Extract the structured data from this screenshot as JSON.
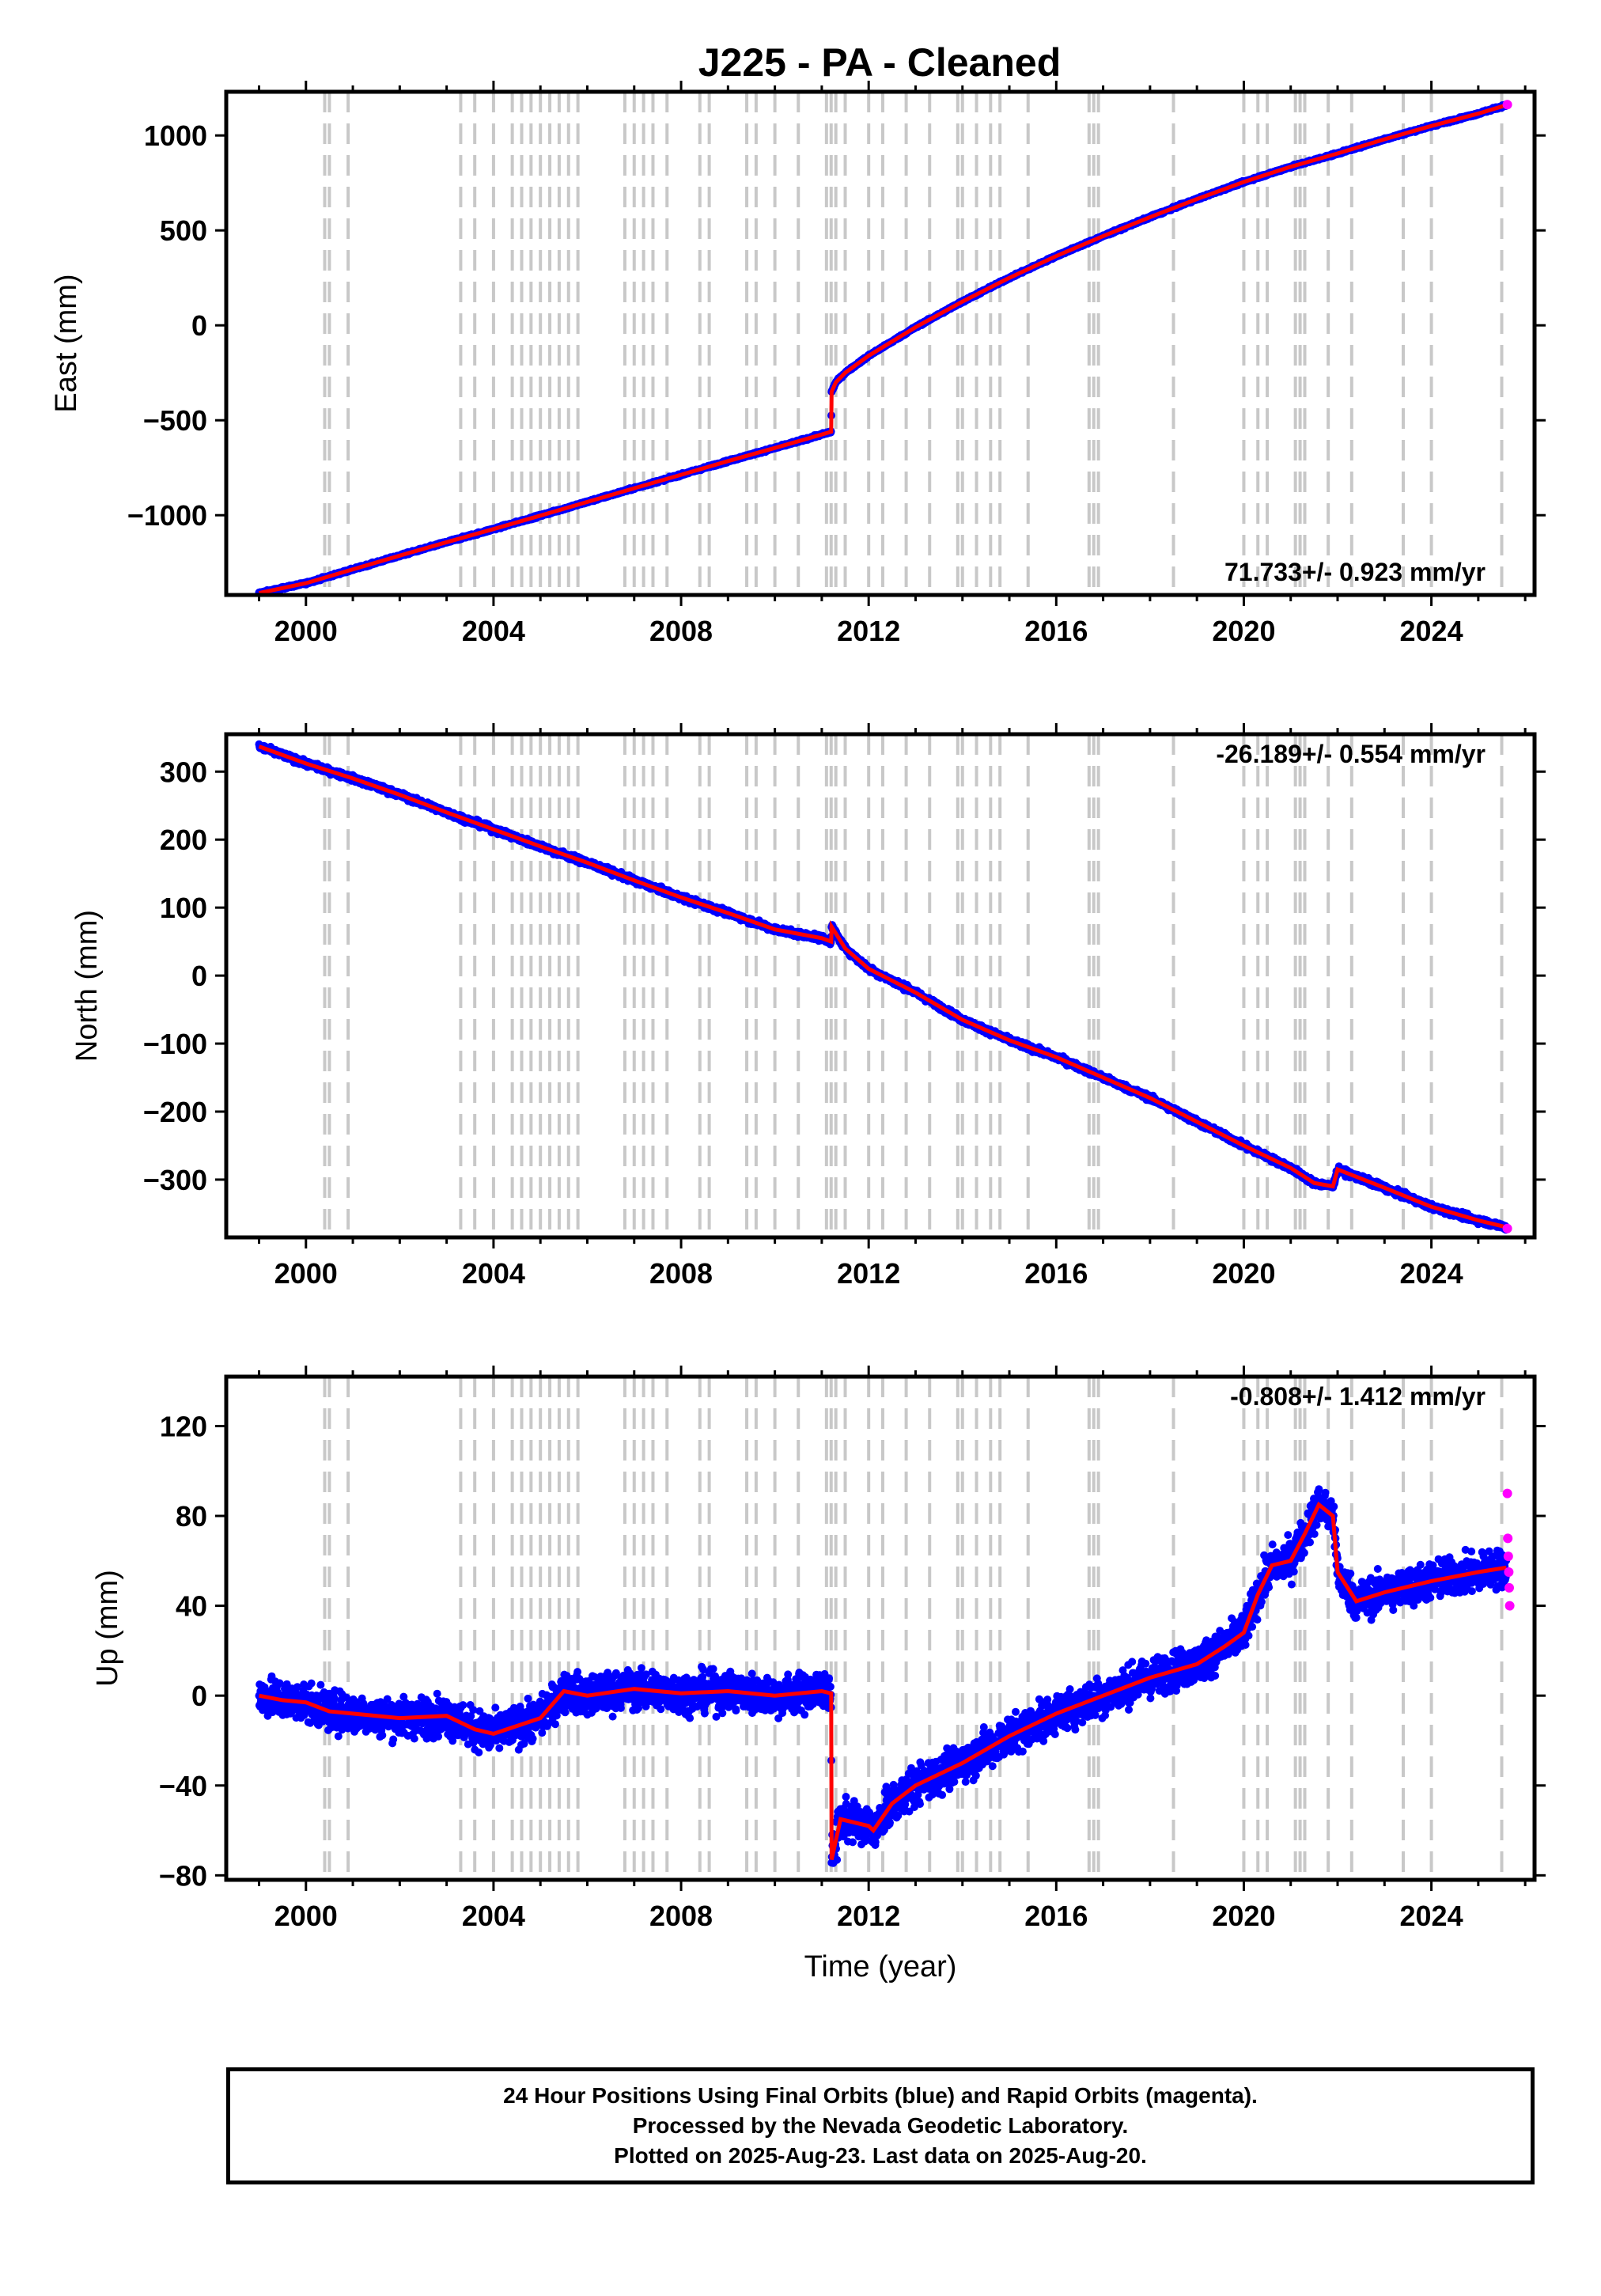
{
  "chart_data": {
    "title": "J225  - PA - Cleaned",
    "type": "scatter",
    "xlabel": "Time (year)",
    "x_range": [
      1998.3,
      2026.2
    ],
    "x_ticks": [
      2000,
      2004,
      2008,
      2012,
      2016,
      2020,
      2024
    ],
    "x_tick_labels": [
      "2000",
      "2004",
      "2008",
      "2012",
      "2016",
      "2020",
      "2024"
    ],
    "colors": {
      "final_orbits": "#0000ff",
      "rapid_orbits": "#ff00ff",
      "model": "#ff0000",
      "offset_lines": "#c8c8c8"
    },
    "offset_epochs": [
      2000.4,
      2000.5,
      2000.9,
      2003.3,
      2003.6,
      2004.0,
      2004.4,
      2004.6,
      2004.8,
      2005.0,
      2005.2,
      2005.4,
      2005.6,
      2005.8,
      2006.8,
      2007.0,
      2007.2,
      2007.4,
      2007.7,
      2008.4,
      2008.6,
      2009.4,
      2009.6,
      2010.0,
      2010.5,
      2011.1,
      2011.2,
      2011.3,
      2011.5,
      2012.0,
      2012.3,
      2012.8,
      2013.3,
      2013.9,
      2014.0,
      2014.3,
      2014.6,
      2014.8,
      2015.4,
      2016.7,
      2016.8,
      2016.9,
      2018.5,
      2020.0,
      2020.3,
      2020.5,
      2021.1,
      2021.2,
      2021.3,
      2021.8,
      2022.3,
      2023.4,
      2024.0,
      2025.5
    ],
    "panels": [
      {
        "ylabel": "East (mm)",
        "ylim": [
          -1420,
          1230
        ],
        "y_ticks": [
          1000,
          500,
          0,
          -500,
          -1000
        ],
        "y_tick_labels": [
          "1000",
          "500",
          "0",
          "−500",
          "−1000"
        ],
        "rate": "71.733+/- 0.923 mm/yr",
        "rate_position": "bottom-right",
        "series": [
          {
            "name": "Final orbits",
            "points": [
              [
                1999.0,
                -1410
              ],
              [
                2000.0,
                -1358
              ],
              [
                2001.0,
                -1285
              ],
              [
                2002.0,
                -1213
              ],
              [
                2003.0,
                -1142
              ],
              [
                2004.0,
                -1073
              ],
              [
                2005.0,
                -1002
              ],
              [
                2006.0,
                -930
              ],
              [
                2007.0,
                -858
              ],
              [
                2008.0,
                -787
              ],
              [
                2009.0,
                -715
              ],
              [
                2010.0,
                -646
              ],
              [
                2011.0,
                -575
              ],
              [
                2011.2,
                -560
              ],
              [
                2011.21,
                -350
              ],
              [
                2011.3,
                -300
              ],
              [
                2011.5,
                -250
              ],
              [
                2012.0,
                -160
              ],
              [
                2013.0,
                -10
              ],
              [
                2014.0,
                125
              ],
              [
                2015.0,
                250
              ],
              [
                2016.0,
                365
              ],
              [
                2017.0,
                470
              ],
              [
                2018.0,
                570
              ],
              [
                2019.0,
                665
              ],
              [
                2020.0,
                755
              ],
              [
                2021.0,
                835
              ],
              [
                2022.0,
                905
              ],
              [
                2023.0,
                980
              ],
              [
                2024.0,
                1050
              ],
              [
                2025.0,
                1115
              ],
              [
                2025.6,
                1160
              ]
            ]
          },
          {
            "name": "Rapid orbits",
            "points": [
              [
                2025.62,
                1162
              ]
            ]
          }
        ]
      },
      {
        "ylabel": "North (mm)",
        "ylim": [
          -385,
          355
        ],
        "y_ticks": [
          300,
          200,
          100,
          0,
          -100,
          -200,
          -300
        ],
        "y_tick_labels": [
          "300",
          "200",
          "100",
          "0",
          "−100",
          "−200",
          "−300"
        ],
        "rate": "-26.189+/- 0.554 mm/yr",
        "rate_position": "top-right",
        "series": [
          {
            "name": "Final orbits",
            "points": [
              [
                1999.0,
                337
              ],
              [
                2000.0,
                312
              ],
              [
                2001.0,
                290
              ],
              [
                2002.0,
                266
              ],
              [
                2003.0,
                240
              ],
              [
                2004.0,
                215
              ],
              [
                2005.0,
                190
              ],
              [
                2006.0,
                166
              ],
              [
                2007.0,
                140
              ],
              [
                2008.0,
                115
              ],
              [
                2009.0,
                92
              ],
              [
                2010.0,
                68
              ],
              [
                2011.0,
                55
              ],
              [
                2011.2,
                50
              ],
              [
                2011.21,
                72
              ],
              [
                2011.5,
                40
              ],
              [
                2012.0,
                10
              ],
              [
                2013.0,
                -25
              ],
              [
                2014.0,
                -65
              ],
              [
                2015.0,
                -95
              ],
              [
                2016.0,
                -120
              ],
              [
                2017.0,
                -150
              ],
              [
                2018.0,
                -180
              ],
              [
                2019.0,
                -215
              ],
              [
                2020.0,
                -250
              ],
              [
                2021.0,
                -283
              ],
              [
                2021.5,
                -305
              ],
              [
                2021.9,
                -310
              ],
              [
                2022.0,
                -285
              ],
              [
                2023.0,
                -312
              ],
              [
                2024.0,
                -340
              ],
              [
                2025.0,
                -360
              ],
              [
                2025.6,
                -370
              ]
            ]
          },
          {
            "name": "Rapid orbits",
            "points": [
              [
                2025.62,
                -372
              ]
            ]
          }
        ]
      },
      {
        "ylabel": "Up (mm)",
        "ylim": [
          -82,
          142
        ],
        "y_ticks": [
          120,
          80,
          40,
          0,
          -40,
          -80
        ],
        "y_tick_labels": [
          "120",
          "80",
          "40",
          "0",
          "−40",
          "−80"
        ],
        "rate": "-0.808+/- 1.412 mm/yr",
        "rate_position": "top-right",
        "series": [
          {
            "name": "Final orbits",
            "points": [
              [
                1999.0,
                0
              ],
              [
                1999.5,
                -2
              ],
              [
                2000.0,
                -3
              ],
              [
                2000.5,
                -7
              ],
              [
                2001.0,
                -8
              ],
              [
                2002.0,
                -10
              ],
              [
                2003.0,
                -9
              ],
              [
                2003.6,
                -15
              ],
              [
                2004.0,
                -17
              ],
              [
                2005.0,
                -10
              ],
              [
                2005.5,
                2
              ],
              [
                2006.0,
                0
              ],
              [
                2007.0,
                3
              ],
              [
                2008.0,
                1
              ],
              [
                2009.0,
                2
              ],
              [
                2010.0,
                0
              ],
              [
                2011.0,
                2
              ],
              [
                2011.2,
                1
              ],
              [
                2011.21,
                -73
              ],
              [
                2011.4,
                -55
              ],
              [
                2012.0,
                -58
              ],
              [
                2012.1,
                -60
              ],
              [
                2012.5,
                -48
              ],
              [
                2013.0,
                -40
              ],
              [
                2014.0,
                -30
              ],
              [
                2015.0,
                -18
              ],
              [
                2016.0,
                -8
              ],
              [
                2017.0,
                0
              ],
              [
                2018.0,
                8
              ],
              [
                2019.0,
                14
              ],
              [
                2019.6,
                22
              ],
              [
                2020.0,
                28
              ],
              [
                2020.3,
                45
              ],
              [
                2020.6,
                58
              ],
              [
                2021.0,
                60
              ],
              [
                2021.3,
                72
              ],
              [
                2021.6,
                85
              ],
              [
                2021.9,
                80
              ],
              [
                2022.0,
                55
              ],
              [
                2022.4,
                42
              ],
              [
                2023.0,
                46
              ],
              [
                2024.0,
                51
              ],
              [
                2025.0,
                55
              ],
              [
                2025.6,
                57
              ]
            ]
          },
          {
            "name": "Rapid orbits",
            "points": [
              [
                2025.62,
                90
              ],
              [
                2025.63,
                70
              ],
              [
                2025.64,
                62
              ],
              [
                2025.65,
                55
              ],
              [
                2025.66,
                48
              ],
              [
                2025.67,
                40
              ]
            ]
          }
        ]
      }
    ]
  },
  "footer": {
    "line1": "24 Hour Positions Using Final Orbits (blue) and Rapid Orbits (magenta).",
    "line2": "Processed by the Nevada Geodetic Laboratory.",
    "line3": "Plotted on 2025-Aug-23. Last data on 2025-Aug-20."
  }
}
